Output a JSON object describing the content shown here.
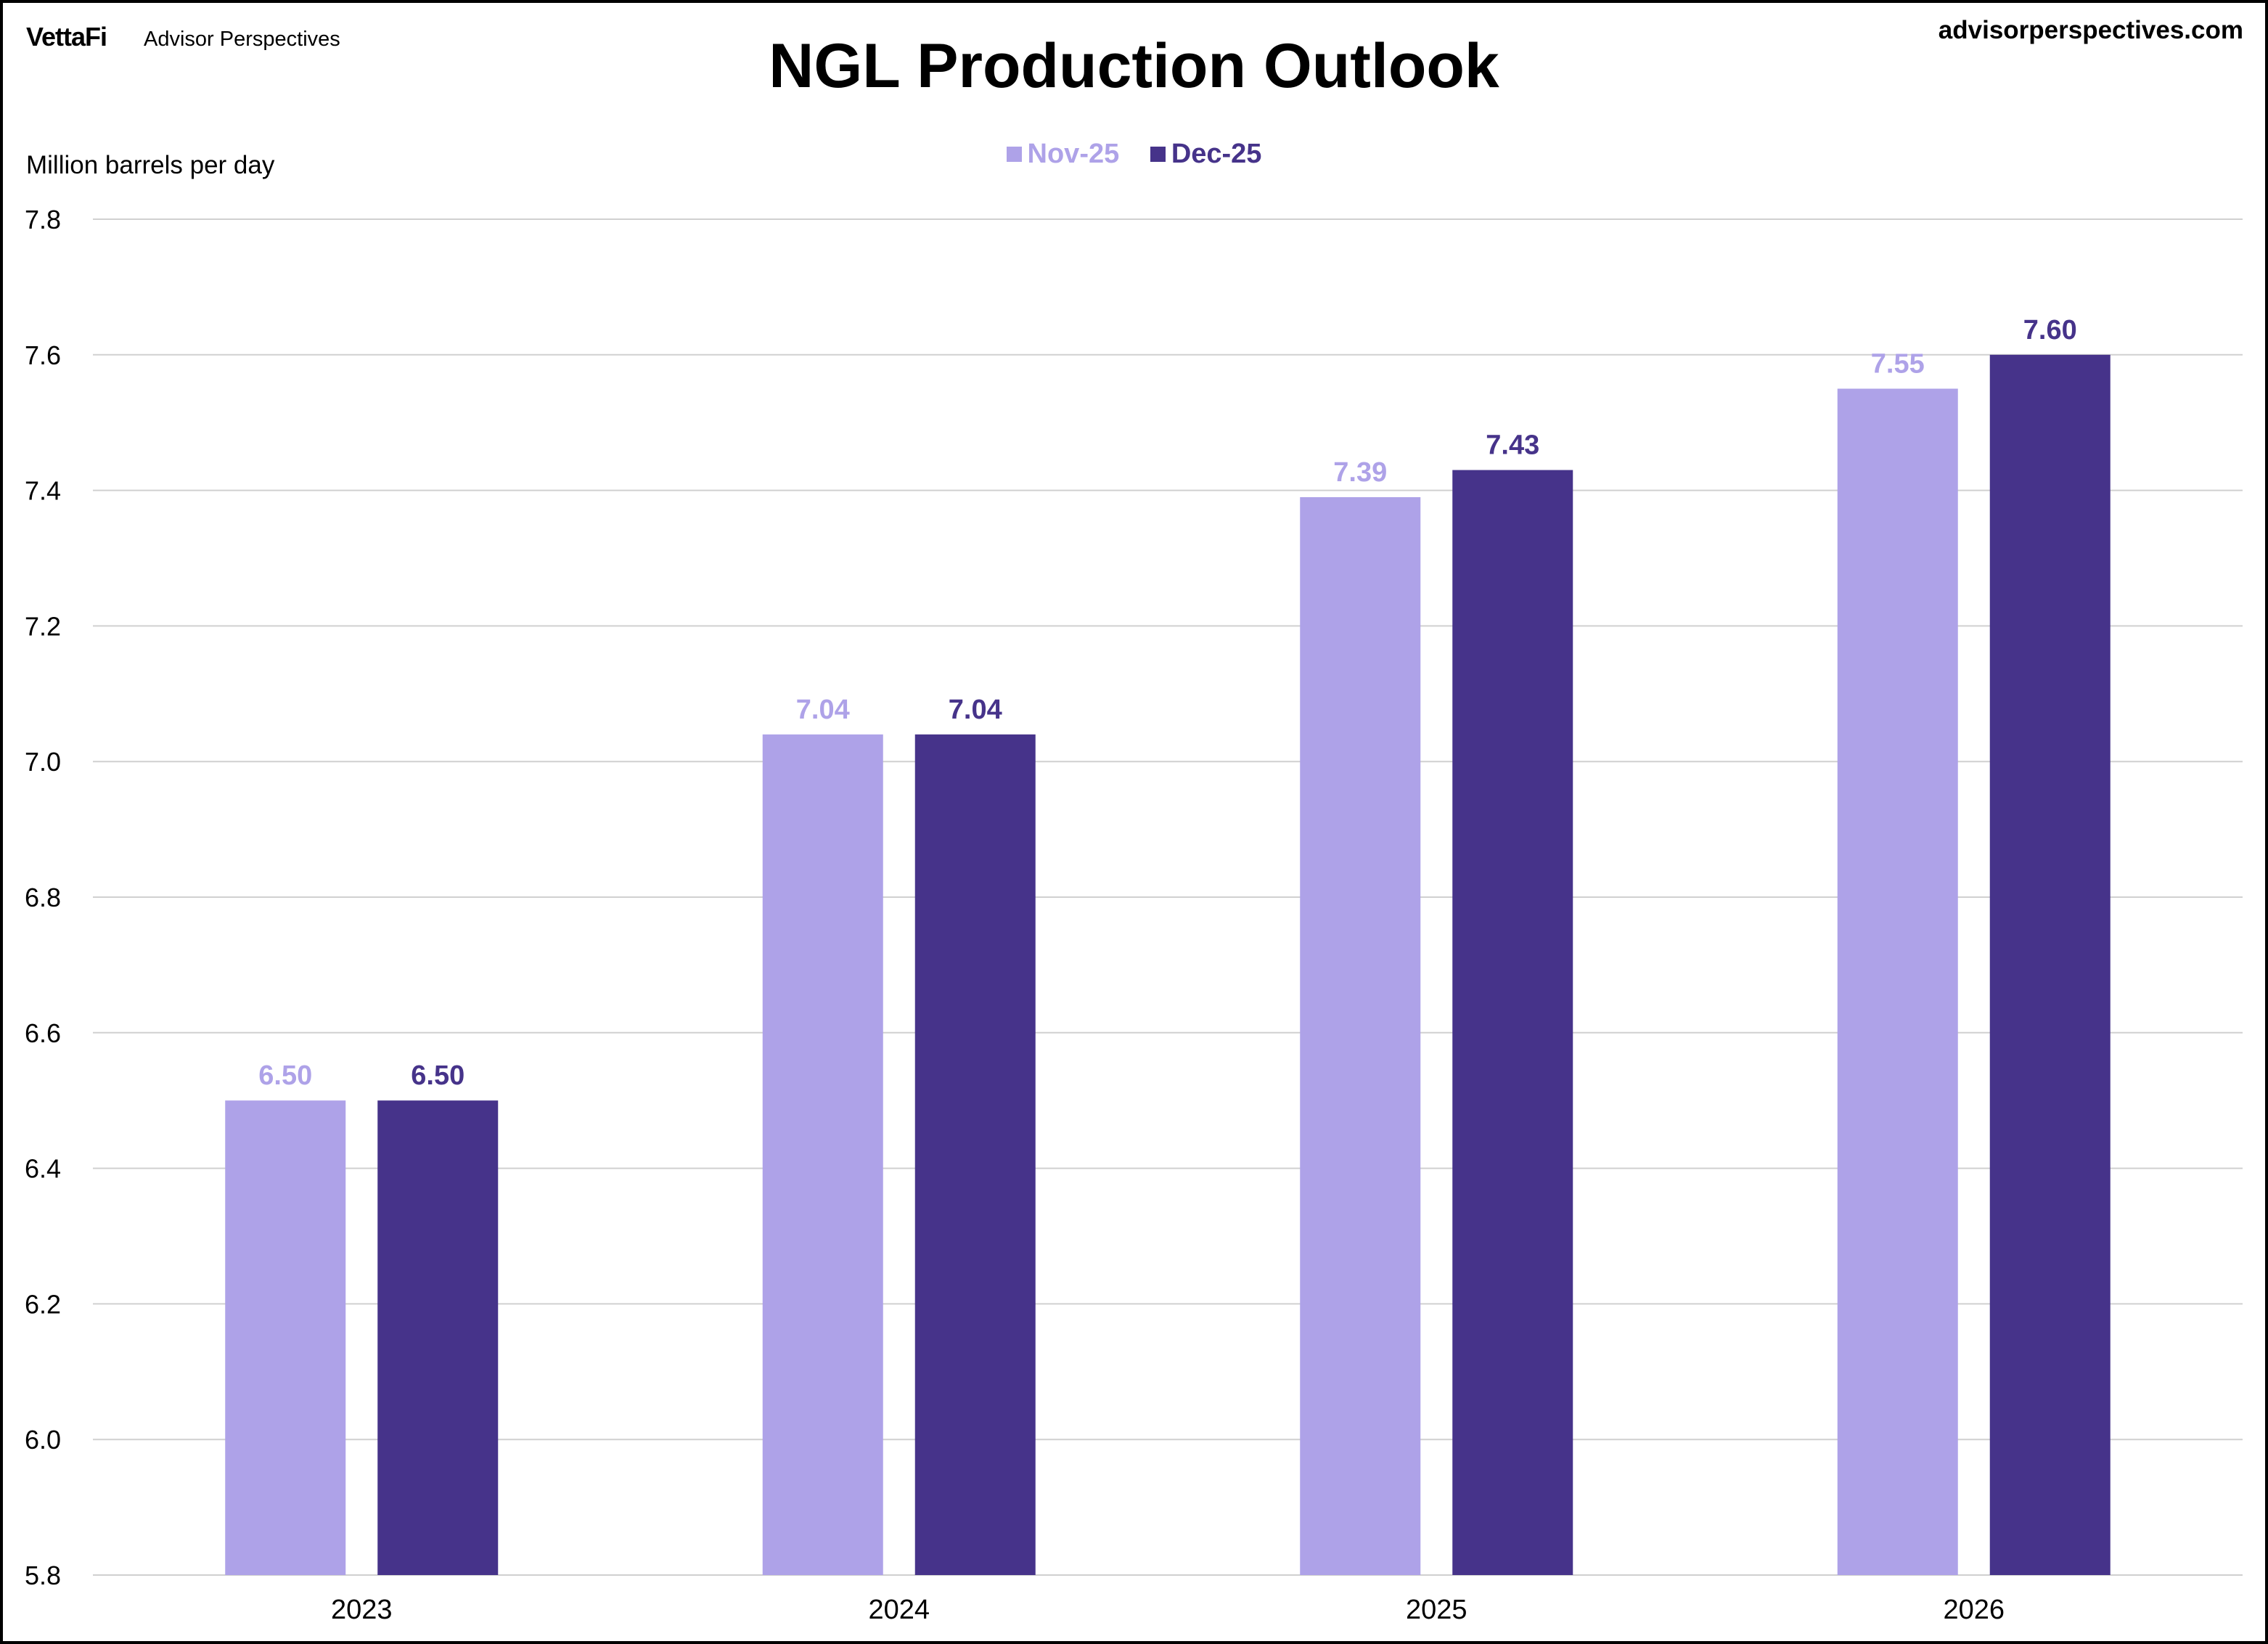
{
  "header": {
    "logo": "VettaFi",
    "brand": "Advisor Perspectives",
    "site": "advisorperspectives.com"
  },
  "chart_data": {
    "type": "bar",
    "title": "NGL Production Outlook",
    "ylabel": "Million barrels per day",
    "xlabel": "",
    "categories": [
      "2023",
      "2024",
      "2025",
      "2026"
    ],
    "series": [
      {
        "name": "Nov-25",
        "color": "#AEA2E8",
        "values": [
          6.5,
          7.04,
          7.39,
          7.55
        ],
        "labels": [
          "6.50",
          "7.04",
          "7.39",
          "7.55"
        ]
      },
      {
        "name": "Dec-25",
        "color": "#46338A",
        "values": [
          6.5,
          7.04,
          7.43,
          7.6
        ],
        "labels": [
          "6.50",
          "7.04",
          "7.43",
          "7.60"
        ]
      }
    ],
    "ylim": [
      5.8,
      7.8
    ],
    "yticks": [
      "5.8",
      "6.0",
      "6.2",
      "6.4",
      "6.6",
      "6.8",
      "7.0",
      "7.2",
      "7.4",
      "7.6",
      "7.8"
    ],
    "grid": true,
    "legend": "top-center"
  }
}
